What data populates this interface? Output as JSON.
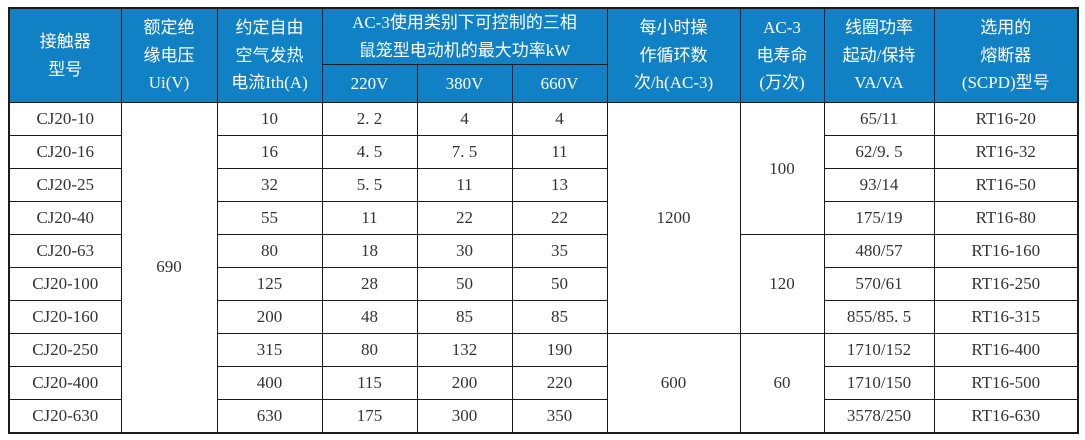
{
  "table": {
    "title": "CJ20 contactor specification table",
    "colors": {
      "header_bg": "#1181c5",
      "header_text": "#ffffff",
      "border": "#1c1c1c",
      "body_text": "#333333"
    },
    "header": {
      "model": "接触器\n型号",
      "ui": "额定绝\n缘电压\nUi(V)",
      "ith": "约定自由\n空气发热\n电流Ith(A)",
      "ac3_group": "AC-3使用类别下可控制的三相\n鼠笼型电动机的最大功率kW",
      "v220": "220V",
      "v380": "380V",
      "v660": "660V",
      "cycles": "每小时操\n作循环数\n次/h(AC-3)",
      "life": "AC-3\n电寿命\n(万次)",
      "coil": "线圈功率\n起动/保持\nVA/VA",
      "fuse": "选用的\n熔断器\n(SCPD)型号"
    },
    "merged": {
      "ui_all": "690",
      "cycles_rows_1_7": "1200",
      "cycles_rows_8_10": "600",
      "life_rows_1_4": "100",
      "life_rows_5_7": "120",
      "life_rows_8_10": "60"
    },
    "rows": [
      {
        "model": "CJ20-10",
        "ith": "10",
        "v220": "2. 2",
        "v380": "4",
        "v660": "4",
        "coil": "65/11",
        "fuse": "RT16-20"
      },
      {
        "model": "CJ20-16",
        "ith": "16",
        "v220": "4. 5",
        "v380": "7. 5",
        "v660": "11",
        "coil": "62/9. 5",
        "fuse": "RT16-32"
      },
      {
        "model": "CJ20-25",
        "ith": "32",
        "v220": "5. 5",
        "v380": "11",
        "v660": "13",
        "coil": "93/14",
        "fuse": "RT16-50"
      },
      {
        "model": "CJ20-40",
        "ith": "55",
        "v220": "11",
        "v380": "22",
        "v660": "22",
        "coil": "175/19",
        "fuse": "RT16-80"
      },
      {
        "model": "CJ20-63",
        "ith": "80",
        "v220": "18",
        "v380": "30",
        "v660": "35",
        "coil": "480/57",
        "fuse": "RT16-160"
      },
      {
        "model": "CJ20-100",
        "ith": "125",
        "v220": "28",
        "v380": "50",
        "v660": "50",
        "coil": "570/61",
        "fuse": "RT16-250"
      },
      {
        "model": "CJ20-160",
        "ith": "200",
        "v220": "48",
        "v380": "85",
        "v660": "85",
        "coil": "855/85. 5",
        "fuse": "RT16-315"
      },
      {
        "model": "CJ20-250",
        "ith": "315",
        "v220": "80",
        "v380": "132",
        "v660": "190",
        "coil": "1710/152",
        "fuse": "RT16-400"
      },
      {
        "model": "CJ20-400",
        "ith": "400",
        "v220": "115",
        "v380": "200",
        "v660": "220",
        "coil": "1710/150",
        "fuse": "RT16-500"
      },
      {
        "model": "CJ20-630",
        "ith": "630",
        "v220": "175",
        "v380": "300",
        "v660": "350",
        "coil": "3578/250",
        "fuse": "RT16-630"
      }
    ]
  }
}
